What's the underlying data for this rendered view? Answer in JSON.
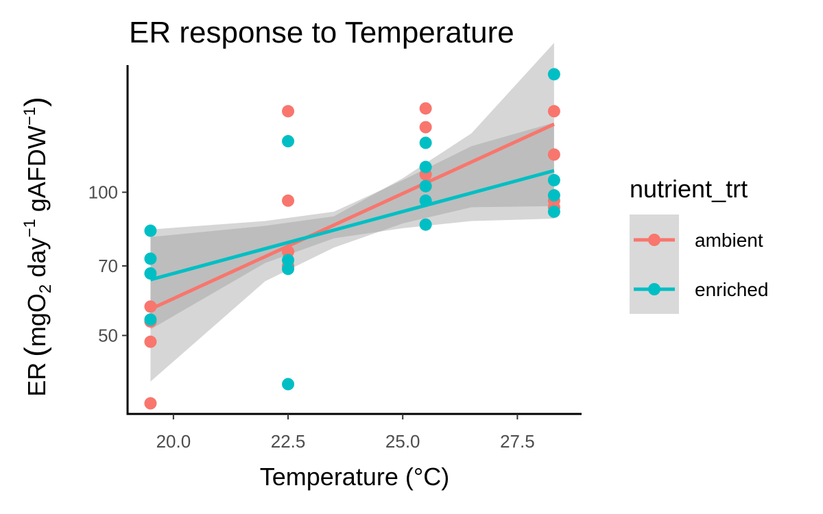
{
  "chart_data": {
    "type": "scatter",
    "title": "ER response to Temperature",
    "xlabel": "Temperature (°C)",
    "ylabel": {
      "prefix": "ER",
      "unit_main": "mgO",
      "sub": "2",
      "unit_day": " day",
      "sup1": "−1",
      "unit_mass": " gAFDW",
      "sup2": "−1"
    },
    "x_ticks": [
      20.0,
      22.5,
      25.0,
      27.5
    ],
    "x_tick_labels": [
      "20.0",
      "22.5",
      "25.0",
      "27.5"
    ],
    "y_ticks": [
      50,
      70,
      100
    ],
    "y_tick_labels": [
      "50",
      "70",
      "100"
    ],
    "y_scale": "log10",
    "xlim": [
      19,
      28.9
    ],
    "ylim": [
      34.2,
      185
    ],
    "grid": false,
    "legend": {
      "title": "nutrient_trt",
      "position": "right"
    },
    "series": [
      {
        "name": "ambient",
        "color": "#F8766D",
        "points": [
          {
            "x": 19.5,
            "y": 57.5
          },
          {
            "x": 19.5,
            "y": 53.5
          },
          {
            "x": 19.5,
            "y": 48.5
          },
          {
            "x": 19.5,
            "y": 36.0
          },
          {
            "x": 22.5,
            "y": 148.0
          },
          {
            "x": 22.5,
            "y": 96.0
          },
          {
            "x": 22.5,
            "y": 75.0
          },
          {
            "x": 22.5,
            "y": 70.0
          },
          {
            "x": 25.5,
            "y": 150.0
          },
          {
            "x": 25.5,
            "y": 137.0
          },
          {
            "x": 25.5,
            "y": 109.0
          },
          {
            "x": 25.5,
            "y": 103.0
          },
          {
            "x": 28.3,
            "y": 148.0
          },
          {
            "x": 28.3,
            "y": 120.0
          },
          {
            "x": 28.3,
            "y": 96.0
          },
          {
            "x": 28.3,
            "y": 93.0
          }
        ],
        "fit": {
          "x": [
            19.5,
            28.3
          ],
          "y": [
            56.8,
            139.0
          ]
        },
        "ci": {
          "x": [
            19.5,
            22.0,
            23.5,
            25.0,
            26.5,
            28.3
          ],
          "lower": [
            40.0,
            65.0,
            76.5,
            86.0,
            93.0,
            93.5
          ],
          "upper": [
            80.5,
            85.0,
            89.0,
            107.0,
            133.0,
            206.0
          ]
        }
      },
      {
        "name": "enriched",
        "color": "#00BFC4",
        "points": [
          {
            "x": 19.5,
            "y": 83.0
          },
          {
            "x": 19.5,
            "y": 72.5
          },
          {
            "x": 19.5,
            "y": 67.5
          },
          {
            "x": 19.5,
            "y": 54.0
          },
          {
            "x": 22.5,
            "y": 128.0
          },
          {
            "x": 22.5,
            "y": 72.0
          },
          {
            "x": 22.5,
            "y": 69.0
          },
          {
            "x": 22.5,
            "y": 39.5
          },
          {
            "x": 25.5,
            "y": 127.0
          },
          {
            "x": 25.5,
            "y": 113.0
          },
          {
            "x": 25.5,
            "y": 103.0
          },
          {
            "x": 25.5,
            "y": 96.0
          },
          {
            "x": 25.5,
            "y": 85.5
          },
          {
            "x": 28.3,
            "y": 177.0
          },
          {
            "x": 28.3,
            "y": 106.0
          },
          {
            "x": 28.3,
            "y": 98.5
          },
          {
            "x": 28.3,
            "y": 91.0
          }
        ],
        "fit": {
          "x": [
            19.5,
            28.3
          ],
          "y": [
            65.5,
            111.0
          ]
        },
        "ci": {
          "x": [
            19.5,
            22.0,
            23.5,
            25.0,
            26.5,
            28.3
          ],
          "lower": [
            51.5,
            71.0,
            80.0,
            84.0,
            87.0,
            88.0
          ],
          "upper": [
            83.5,
            87.0,
            91.0,
            106.0,
            125.0,
            140.0
          ]
        }
      }
    ]
  }
}
